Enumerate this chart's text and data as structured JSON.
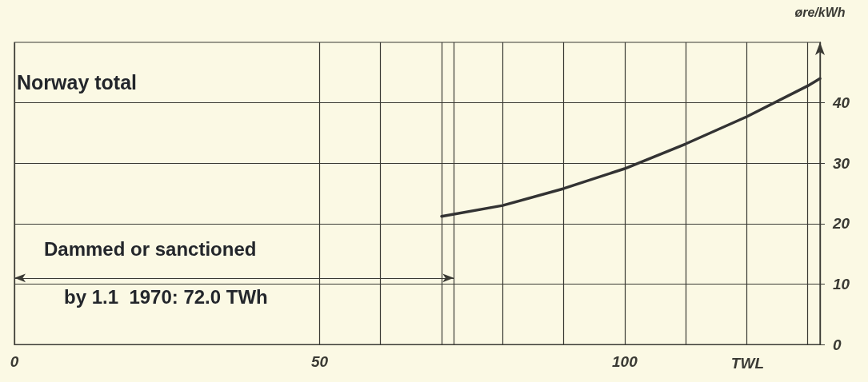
{
  "chart_data": {
    "type": "line",
    "title": "Norway total",
    "xlabel": "TWL",
    "ylabel": "øre/kWh",
    "x": [
      70,
      80,
      90,
      100,
      110,
      120,
      130,
      132
    ],
    "series": [
      {
        "color": "#333333",
        "values": [
          21.2,
          23.0,
          25.8,
          29.1,
          33.2,
          37.7,
          42.8,
          44.0
        ]
      }
    ],
    "xlim": [
      0,
      132
    ],
    "ylim": [
      0,
      50
    ],
    "xticks": [
      0,
      50,
      {
        "value": 60,
        "label": null
      },
      {
        "value": 70,
        "label": null
      },
      {
        "value": 80,
        "label": null
      },
      {
        "value": 90,
        "label": null
      },
      100,
      {
        "value": 110,
        "label": null
      },
      {
        "value": 120,
        "label": null
      },
      {
        "value": 130,
        "label": null
      }
    ],
    "yticks": [
      0,
      10,
      20,
      30,
      40
    ],
    "ref_lines": [
      {
        "axis": "x",
        "value": 72,
        "label": null
      }
    ],
    "annotations": [
      "Dammed or sanctioned",
      "by 1.1  1970: 72.0 TWh"
    ],
    "grid": true,
    "marker": "none",
    "line_style": "solid"
  }
}
